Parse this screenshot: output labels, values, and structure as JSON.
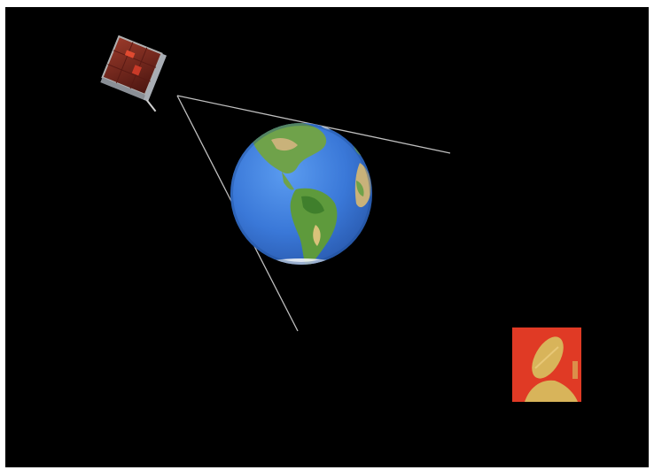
{
  "scene": {
    "background_color": "#000000",
    "border_color": "#ffffff",
    "objects": [
      {
        "id": "satellite",
        "icon": "cubesat-icon",
        "colors": [
          "#7a2a20",
          "#c0c8d0"
        ]
      },
      {
        "id": "earth",
        "icon": "earth-globe-icon",
        "colors": [
          "#3a78d8",
          "#5e9a3c",
          "#d9c27a"
        ]
      },
      {
        "id": "ground-station",
        "icon": "satellite-dish-icon",
        "colors": [
          "#e03a25",
          "#d8b45a"
        ]
      }
    ],
    "beam_color": "#bfbfbf"
  }
}
